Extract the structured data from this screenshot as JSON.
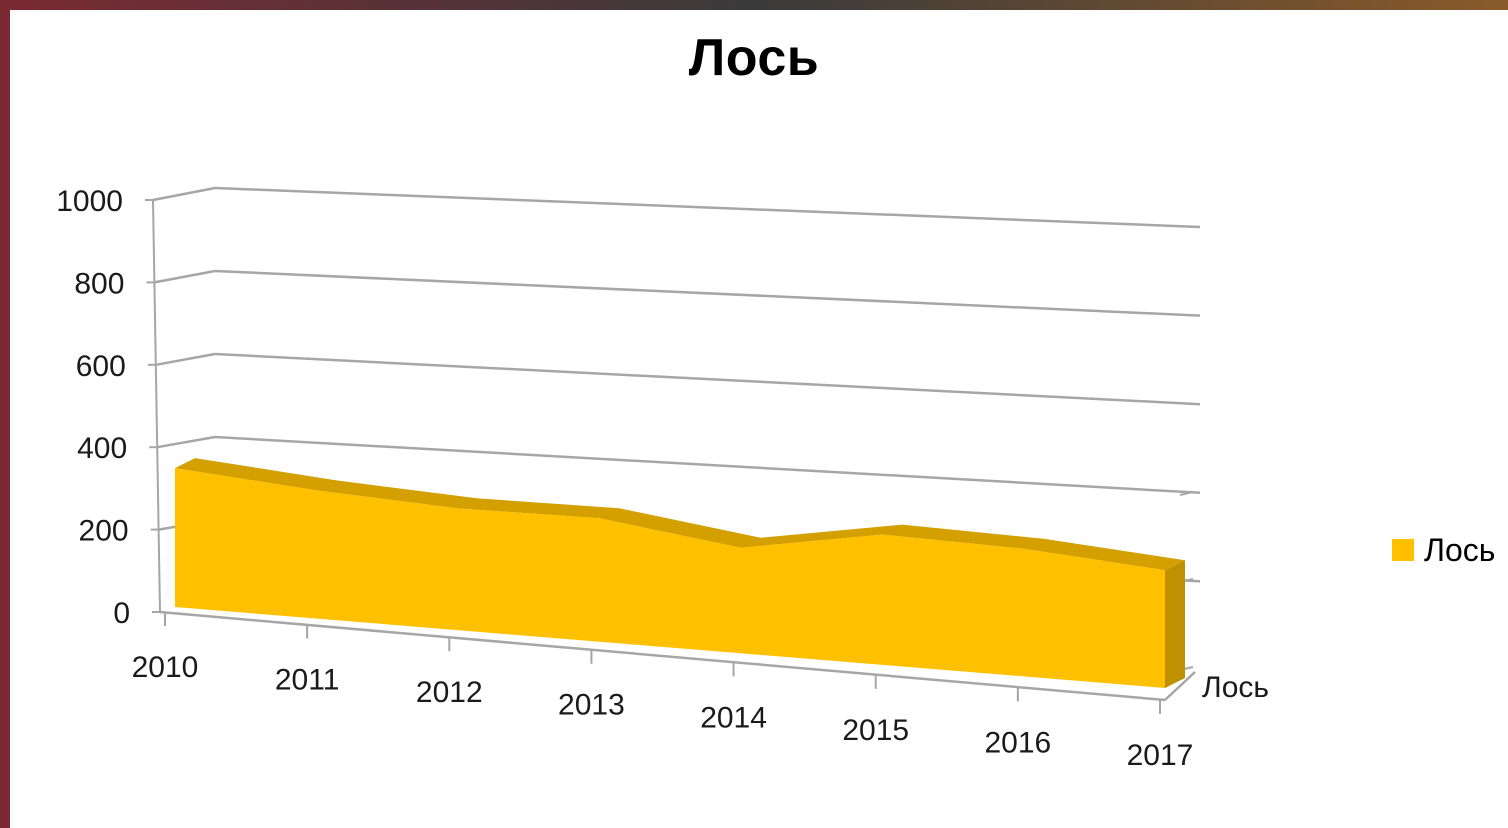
{
  "chart_data": {
    "type": "area",
    "title": "Лось",
    "categories": [
      "2010",
      "2011",
      "2012",
      "2013",
      "2014",
      "2015",
      "2016",
      "2017"
    ],
    "series": [
      {
        "name": "Лось",
        "values": [
          330,
          310,
          300,
          310,
          270,
          340,
          340,
          320
        ],
        "color": "#FFC000"
      }
    ],
    "ylim": [
      0,
      1000
    ],
    "yticks": [
      0,
      200,
      400,
      600,
      800,
      1000
    ],
    "depth_axis_label": "Лось",
    "legend_position": "right",
    "grid": true
  }
}
